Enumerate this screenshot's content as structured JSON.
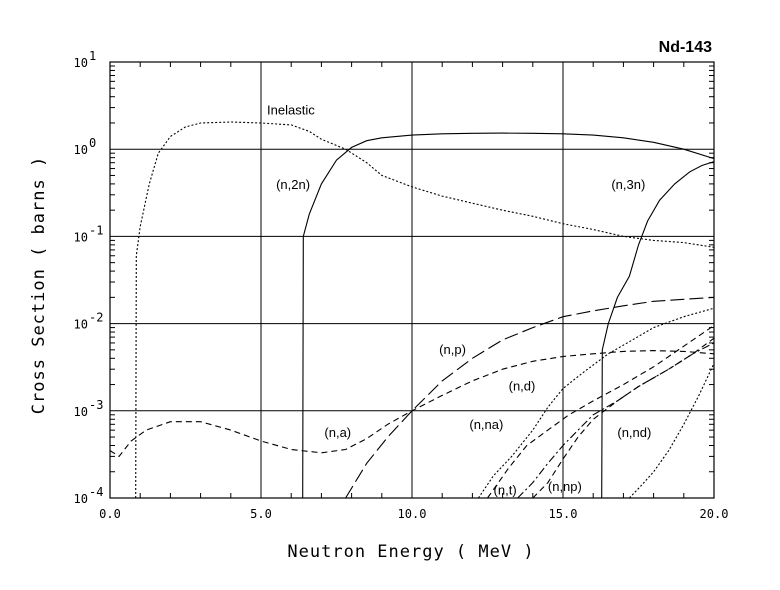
{
  "chart_data": {
    "type": "line",
    "title": "Nd-143",
    "xlabel": "Neutron Energy ( MeV )",
    "ylabel": "Cross Section ( barns )",
    "xlim": [
      0,
      20
    ],
    "ylim": [
      0.0001,
      10
    ],
    "yscale": "log",
    "grid": true,
    "x_ticks": [
      "0.0",
      "5.0",
      "10.0",
      "15.0",
      "20.0"
    ],
    "y_ticks": [
      {
        "base": "10",
        "exp": "-4"
      },
      {
        "base": "10",
        "exp": "-3"
      },
      {
        "base": "10",
        "exp": "-2"
      },
      {
        "base": "10",
        "exp": "-1"
      },
      {
        "base": "10",
        "exp": "0"
      },
      {
        "base": "10",
        "exp": "1"
      }
    ],
    "series": [
      {
        "name": "Inelastic",
        "style": "dotted",
        "points": [
          [
            0.85,
            0.0001
          ],
          [
            0.87,
            0.06
          ],
          [
            1.0,
            0.13
          ],
          [
            1.3,
            0.4
          ],
          [
            1.6,
            0.9
          ],
          [
            2.0,
            1.4
          ],
          [
            2.5,
            1.8
          ],
          [
            3.0,
            2.0
          ],
          [
            4.0,
            2.05
          ],
          [
            5.0,
            2.0
          ],
          [
            6.0,
            1.9
          ],
          [
            6.6,
            1.6
          ],
          [
            7.0,
            1.3
          ],
          [
            7.8,
            1.0
          ],
          [
            8.5,
            0.7
          ],
          [
            9.0,
            0.5
          ],
          [
            10.0,
            0.37
          ],
          [
            11.0,
            0.29
          ],
          [
            12.0,
            0.24
          ],
          [
            13.0,
            0.2
          ],
          [
            14.0,
            0.17
          ],
          [
            15.0,
            0.14
          ],
          [
            16.0,
            0.12
          ],
          [
            17.0,
            0.1
          ],
          [
            18.0,
            0.09
          ],
          [
            19.0,
            0.085
          ],
          [
            20.0,
            0.075
          ]
        ]
      },
      {
        "name": "(n,2n)",
        "style": "solid",
        "points": [
          [
            6.38,
            0.0001
          ],
          [
            6.4,
            0.1
          ],
          [
            6.6,
            0.18
          ],
          [
            7.0,
            0.4
          ],
          [
            7.5,
            0.75
          ],
          [
            8.0,
            1.05
          ],
          [
            8.5,
            1.25
          ],
          [
            9.0,
            1.35
          ],
          [
            10.0,
            1.45
          ],
          [
            11.0,
            1.5
          ],
          [
            12.0,
            1.52
          ],
          [
            13.0,
            1.53
          ],
          [
            14.0,
            1.52
          ],
          [
            15.0,
            1.5
          ],
          [
            16.0,
            1.45
          ],
          [
            17.0,
            1.35
          ],
          [
            18.0,
            1.2
          ],
          [
            19.0,
            1.0
          ],
          [
            20.0,
            0.78
          ]
        ]
      },
      {
        "name": "(n,3n)",
        "style": "solid",
        "points": [
          [
            16.28,
            0.0001
          ],
          [
            16.3,
            0.005
          ],
          [
            16.5,
            0.01
          ],
          [
            16.8,
            0.02
          ],
          [
            17.2,
            0.035
          ],
          [
            17.5,
            0.08
          ],
          [
            17.8,
            0.15
          ],
          [
            18.2,
            0.26
          ],
          [
            18.7,
            0.4
          ],
          [
            19.2,
            0.55
          ],
          [
            19.6,
            0.65
          ],
          [
            20.0,
            0.72
          ]
        ]
      },
      {
        "name": "(n,p)",
        "style": "long-dash",
        "points": [
          [
            7.8,
            0.0001
          ],
          [
            8.5,
            0.00025
          ],
          [
            9.2,
            0.0005
          ],
          [
            10.0,
            0.001
          ],
          [
            11.0,
            0.0022
          ],
          [
            12.0,
            0.004
          ],
          [
            13.0,
            0.0065
          ],
          [
            14.0,
            0.009
          ],
          [
            15.0,
            0.012
          ],
          [
            16.0,
            0.014
          ],
          [
            17.0,
            0.016
          ],
          [
            18.0,
            0.018
          ],
          [
            19.0,
            0.019
          ],
          [
            20.0,
            0.02
          ]
        ]
      },
      {
        "name": "(n,a)",
        "style": "dashed",
        "points": [
          [
            0.0,
            0.00035
          ],
          [
            0.3,
            0.0003
          ],
          [
            0.7,
            0.00045
          ],
          [
            1.2,
            0.0006
          ],
          [
            2.0,
            0.00075
          ],
          [
            3.0,
            0.00075
          ],
          [
            4.0,
            0.0006
          ],
          [
            5.0,
            0.00045
          ],
          [
            6.0,
            0.00036
          ],
          [
            7.0,
            0.00033
          ],
          [
            7.8,
            0.00036
          ],
          [
            8.5,
            0.00048
          ],
          [
            9.2,
            0.0007
          ],
          [
            10.0,
            0.001
          ],
          [
            11.0,
            0.0015
          ],
          [
            12.0,
            0.0022
          ],
          [
            13.0,
            0.003
          ],
          [
            14.0,
            0.0037
          ],
          [
            15.0,
            0.0042
          ],
          [
            16.0,
            0.0045
          ],
          [
            17.0,
            0.0048
          ],
          [
            18.0,
            0.0049
          ],
          [
            19.0,
            0.0048
          ],
          [
            20.0,
            0.0045
          ]
        ]
      },
      {
        "name": "(n,d)",
        "style": "dotted",
        "points": [
          [
            12.2,
            0.0001
          ],
          [
            12.7,
            0.00018
          ],
          [
            13.3,
            0.0003
          ],
          [
            14.0,
            0.0006
          ],
          [
            14.5,
            0.0011
          ],
          [
            15.0,
            0.0018
          ],
          [
            15.7,
            0.0028
          ],
          [
            16.5,
            0.0045
          ],
          [
            17.3,
            0.0065
          ],
          [
            18.0,
            0.009
          ],
          [
            19.0,
            0.012
          ],
          [
            20.0,
            0.015
          ]
        ]
      },
      {
        "name": "(n,na)",
        "style": "dashed",
        "points": [
          [
            12.5,
            0.0001
          ],
          [
            13.2,
            0.00022
          ],
          [
            13.8,
            0.0004
          ],
          [
            14.5,
            0.0006
          ],
          [
            15.2,
            0.0009
          ],
          [
            16.0,
            0.0013
          ],
          [
            17.0,
            0.002
          ],
          [
            18.0,
            0.0032
          ],
          [
            19.0,
            0.0055
          ],
          [
            20.0,
            0.0095
          ]
        ]
      },
      {
        "name": "(n,t)",
        "style": "dash-dot",
        "points": [
          [
            13.5,
            0.0001
          ],
          [
            14.0,
            0.00015
          ],
          [
            14.5,
            0.00025
          ],
          [
            15.0,
            0.0004
          ],
          [
            15.5,
            0.0006
          ],
          [
            16.0,
            0.0009
          ],
          [
            16.8,
            0.0013
          ],
          [
            17.5,
            0.0019
          ],
          [
            18.5,
            0.003
          ],
          [
            19.3,
            0.0045
          ],
          [
            20.0,
            0.006
          ]
        ]
      },
      {
        "name": "(n,np)",
        "style": "dashed",
        "points": [
          [
            14.0,
            0.0001
          ],
          [
            14.5,
            0.00015
          ],
          [
            15.0,
            0.00028
          ],
          [
            15.5,
            0.0005
          ],
          [
            16.0,
            0.0008
          ],
          [
            16.8,
            0.0013
          ],
          [
            17.5,
            0.0019
          ],
          [
            18.5,
            0.003
          ],
          [
            19.3,
            0.0045
          ],
          [
            20.0,
            0.0068
          ]
        ]
      },
      {
        "name": "(n,nd)",
        "style": "dotted",
        "points": [
          [
            17.2,
            0.0001
          ],
          [
            17.6,
            0.00014
          ],
          [
            18.0,
            0.0002
          ],
          [
            18.5,
            0.00035
          ],
          [
            19.0,
            0.0007
          ],
          [
            19.5,
            0.0015
          ],
          [
            20.0,
            0.0035
          ]
        ]
      }
    ],
    "labels": [
      {
        "text": "Inelastic",
        "x": 5.2,
        "y": 2.5
      },
      {
        "text": "(n,2n)",
        "x": 5.5,
        "y": 0.35
      },
      {
        "text": "(n,3n)",
        "x": 16.6,
        "y": 0.35
      },
      {
        "text": "(n,p)",
        "x": 10.9,
        "y": 0.0045
      },
      {
        "text": "(n,d)",
        "x": 13.2,
        "y": 0.0017
      },
      {
        "text": "(n,a)",
        "x": 7.1,
        "y": 0.0005
      },
      {
        "text": "(n,na)",
        "x": 11.9,
        "y": 0.00062
      },
      {
        "text": "(n,nd)",
        "x": 16.8,
        "y": 0.0005
      },
      {
        "text": "(n,t)",
        "x": 12.7,
        "y": 0.00011
      },
      {
        "text": "(n,np)",
        "x": 14.5,
        "y": 0.00012
      }
    ]
  }
}
